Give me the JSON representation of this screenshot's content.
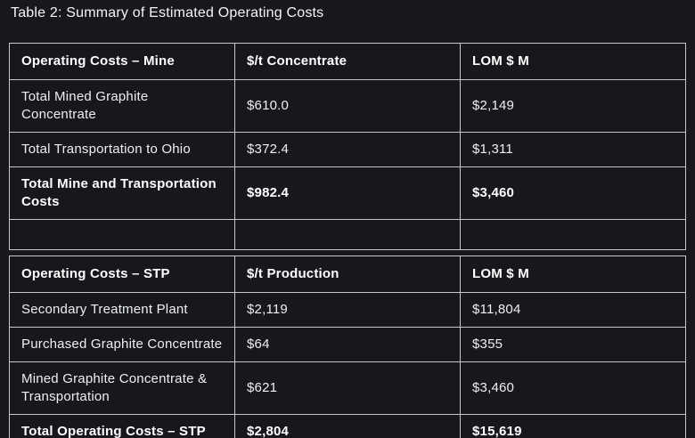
{
  "page": {
    "title": "Table 2: Summary of Estimated Operating Costs",
    "background": "#16181d",
    "border_color": "#c7c9cc",
    "text_color": "#eef0f2"
  },
  "mine_table": {
    "headers": {
      "label": "Operating Costs – Mine",
      "per_tonne": "$/t Concentrate",
      "lom": "LOM $ M"
    },
    "rows": [
      {
        "label": "Total Mined Graphite Concentrate",
        "per_tonne": "$610.0",
        "lom": "$2,149"
      },
      {
        "label": "Total Transportation to Ohio",
        "per_tonne": "$372.4",
        "lom": "$1,311"
      },
      {
        "label": "Total Mine and Transportation Costs",
        "per_tonne": "$982.4",
        "lom": "$3,460"
      }
    ]
  },
  "stp_table": {
    "headers": {
      "label": "Operating Costs – STP",
      "per_tonne": "$/t Production",
      "lom": "LOM $ M"
    },
    "rows": [
      {
        "label": "Secondary Treatment Plant",
        "per_tonne": "$2,119",
        "lom": "$11,804"
      },
      {
        "label": "Purchased Graphite Concentrate",
        "per_tonne": "$64",
        "lom": "$355"
      },
      {
        "label": "Mined Graphite Concentrate & Transportation",
        "per_tonne": "$621",
        "lom": "$3,460"
      },
      {
        "label": "Total Operating Costs – STP",
        "per_tonne": "$2,804",
        "lom": "$15,619"
      }
    ]
  }
}
